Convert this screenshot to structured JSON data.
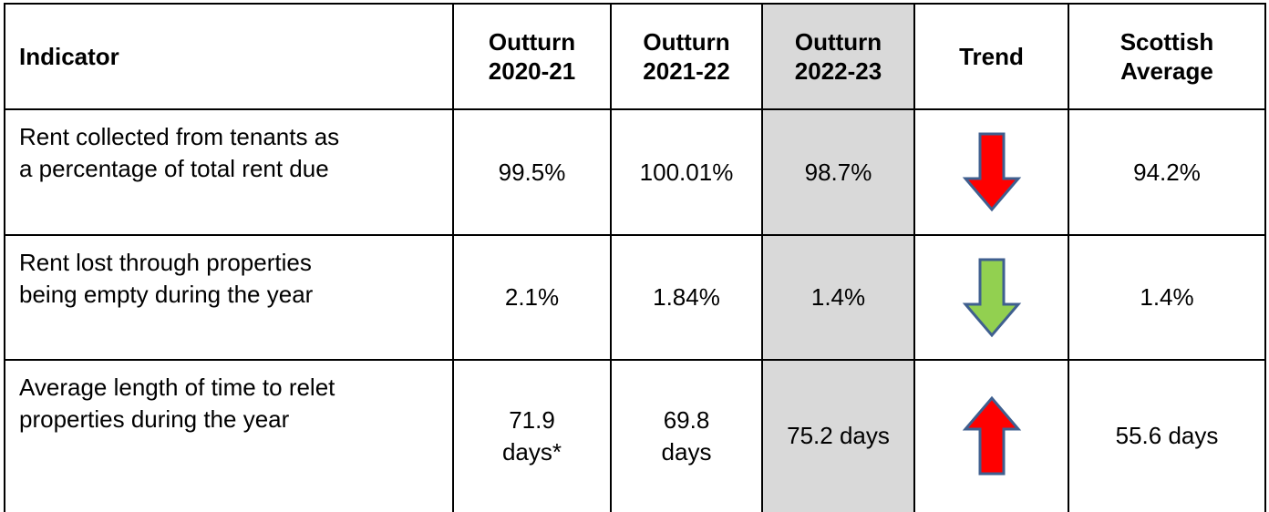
{
  "table": {
    "header": [
      [
        "Indicator"
      ],
      [
        "Outturn",
        "2020-21"
      ],
      [
        "Outturn",
        "2021-22"
      ],
      [
        "Outturn",
        "2022-23"
      ],
      [
        "Trend"
      ],
      [
        "Scottish",
        "Average"
      ]
    ],
    "rows": [
      [
        [
          "Rent collected from tenants as",
          "a percentage of total rent due"
        ],
        [
          "99.5%"
        ],
        [
          "100.01%"
        ],
        [
          "98.7%"
        ],
        [
          "94.2%"
        ]
      ],
      [
        [
          "Rent lost through properties",
          "being empty during the year"
        ],
        [
          "2.1%"
        ],
        [
          "1.84%"
        ],
        [
          "1.4%"
        ],
        [
          "1.4%"
        ]
      ],
      [
        [
          "Average length of time to relet",
          "properties during the year"
        ],
        [
          "71.9",
          "days*"
        ],
        [
          "69.8",
          "days"
        ],
        [
          "75.2 days"
        ],
        [
          "55.6 days"
        ]
      ]
    ]
  }
}
